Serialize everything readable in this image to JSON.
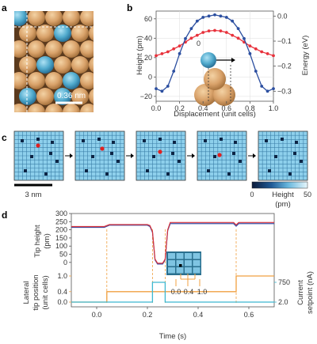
{
  "panels": {
    "a": "a",
    "b": "b",
    "c": "c",
    "d": "d"
  },
  "panel_a": {
    "scale_label": "0.36 nm"
  },
  "panel_b": {
    "ylabel_left": "Height (pm)",
    "ylabel_right": "Energy (eV)",
    "xlabel": "Displacement (unit cells)",
    "inset_label": "0",
    "left_ticks": [
      "60",
      "40",
      "20",
      "0",
      "−20"
    ],
    "right_ticks": [
      "0.0",
      "−0.1",
      "−0.2",
      "−0.3"
    ],
    "x_ticks": [
      "0.0",
      "0.2",
      "0.4",
      "0.6",
      "0.8",
      "1.0"
    ],
    "colors": {
      "height": "#e8323c",
      "energy": "#2c4fa0"
    }
  },
  "panel_c": {
    "scale_label": "3 nm",
    "colorbar_min": "0",
    "colorbar_max": "50",
    "colorbar_label": "Height",
    "colorbar_unit": "(pm)"
  },
  "panel_d": {
    "top_ylabel": [
      "Tip height",
      "(pm)"
    ],
    "top_ticks": [
      "300",
      "250",
      "200",
      "150",
      "100",
      "50",
      "0"
    ],
    "left_ylabel": [
      "Lateral",
      "tip position",
      "(unit cells)"
    ],
    "left_ticks": [
      "1.0",
      "0.4",
      "0.0"
    ],
    "right_ylabel": [
      "Current",
      "setpoint (nA)"
    ],
    "right_ticks": [
      "750",
      "2.0"
    ],
    "inset_labels": [
      "0.0",
      "0.4",
      "1.0"
    ],
    "xlabel": "Time (s)",
    "x_ticks": [
      "0.0",
      "0.2",
      "0.4",
      "0.6"
    ],
    "colors": {
      "lateral": "#f0a040",
      "current": "#3cb8d0",
      "tip_red": "#d8303a",
      "tip_blue": "#3850a8"
    }
  },
  "chart_data": [
    {
      "type": "line",
      "title": "",
      "xlabel": "Displacement (unit cells)",
      "ylabel": "Height (pm)",
      "y2label": "Energy (eV)",
      "xlim": [
        0,
        1
      ],
      "ylim": [
        -25,
        68
      ],
      "y2lim": [
        -0.34,
        0.02
      ],
      "x": [
        0.0,
        0.05,
        0.1,
        0.15,
        0.2,
        0.25,
        0.3,
        0.35,
        0.4,
        0.45,
        0.5,
        0.55,
        0.6,
        0.65,
        0.7,
        0.75,
        0.8,
        0.85,
        0.9,
        0.95,
        1.0
      ],
      "series": [
        {
          "name": "Height (pm)",
          "axis": "left",
          "values": [
            22,
            24,
            26,
            29,
            32,
            36,
            40,
            43,
            46,
            47.5,
            48,
            47.5,
            46,
            43,
            40,
            36,
            32,
            29,
            26,
            24,
            22
          ]
        },
        {
          "name": "Energy (eV)",
          "axis": "right",
          "values": [
            -0.29,
            -0.3,
            -0.28,
            -0.22,
            -0.15,
            -0.09,
            -0.05,
            -0.02,
            -0.005,
            0.0,
            0.005,
            0.0,
            -0.005,
            -0.02,
            -0.05,
            -0.09,
            -0.15,
            -0.22,
            -0.28,
            -0.3,
            -0.29
          ]
        }
      ]
    },
    {
      "type": "line",
      "title": "",
      "xlabel": "Time (s)",
      "ylabel": "Tip height (pm)",
      "xlim": [
        -0.1,
        0.7
      ],
      "ylim": [
        -30,
        300
      ],
      "x": [
        -0.1,
        0.0,
        0.03,
        0.05,
        0.2,
        0.21,
        0.22,
        0.23,
        0.24,
        0.25,
        0.26,
        0.27,
        0.28,
        0.29,
        0.3,
        0.35,
        0.4,
        0.5,
        0.54,
        0.55,
        0.56,
        0.6,
        0.7
      ],
      "series": [
        {
          "name": "red",
          "values": [
            220,
            220,
            220,
            232,
            232,
            226,
            190,
            20,
            -5,
            -5,
            -5,
            20,
            200,
            245,
            245,
            245,
            245,
            245,
            245,
            230,
            245,
            245,
            245
          ]
        },
        {
          "name": "blue",
          "values": [
            215,
            215,
            215,
            228,
            228,
            220,
            185,
            15,
            -10,
            -10,
            -10,
            15,
            195,
            238,
            238,
            238,
            238,
            238,
            238,
            222,
            238,
            238,
            238
          ]
        }
      ]
    },
    {
      "type": "line",
      "title": "",
      "xlabel": "Time (s)",
      "ylabel": "Lateral tip position (unit cells)",
      "y2label": "Current setpoint (nA)",
      "xlim": [
        -0.1,
        0.7
      ],
      "series": [
        {
          "name": "Lateral tip position (unit cells)",
          "axis": "left",
          "x": [
            -0.1,
            0.04,
            0.04,
            0.27,
            0.27,
            0.55,
            0.55,
            0.7
          ],
          "values": [
            0.0,
            0.0,
            0.4,
            0.4,
            0.4,
            0.4,
            1.0,
            1.0
          ]
        },
        {
          "name": "Current setpoint (nA)",
          "axis": "right",
          "x": [
            -0.1,
            0.22,
            0.22,
            0.27,
            0.27,
            0.7
          ],
          "values": [
            2.0,
            2.0,
            750,
            750,
            2.0,
            2.0
          ]
        }
      ]
    }
  ]
}
